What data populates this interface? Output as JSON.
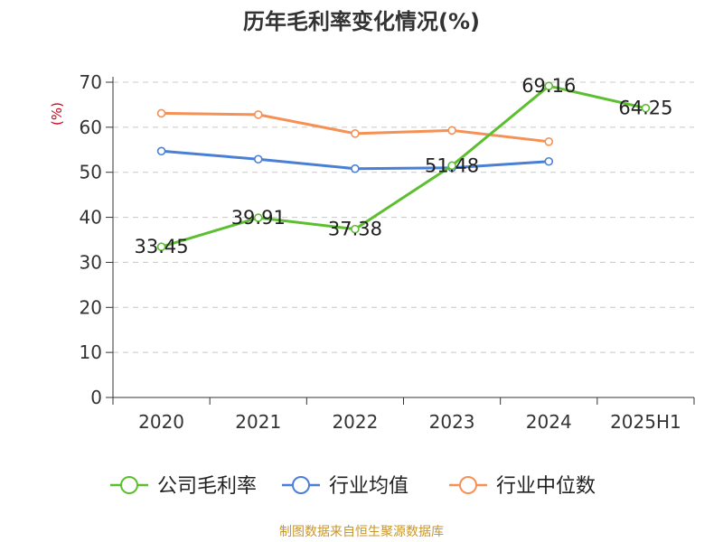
{
  "chart_data": {
    "type": "line",
    "title": "历年毛利率变化情况(%)",
    "ylabel": "(%)",
    "xlabel": "",
    "categories": [
      "2020",
      "2021",
      "2022",
      "2023",
      "2024",
      "2025H1"
    ],
    "ylim": [
      0,
      70
    ],
    "yticks": [
      0,
      10,
      20,
      30,
      40,
      50,
      60,
      70
    ],
    "grid": true,
    "legend_position": "bottom",
    "series": [
      {
        "name": "公司毛利率",
        "color": "#5cbf30",
        "values": [
          33.45,
          39.91,
          37.38,
          51.48,
          69.16,
          64.25
        ],
        "labels": [
          "33.45",
          "39.91",
          "37.38",
          "51.48",
          "69.16",
          "64.25"
        ]
      },
      {
        "name": "行业均值",
        "color": "#4a7fd6",
        "values": [
          54.7,
          52.9,
          50.8,
          51.0,
          52.4,
          null
        ]
      },
      {
        "name": "行业中位数",
        "color": "#f59155",
        "values": [
          63.1,
          62.8,
          58.6,
          59.3,
          56.8,
          null
        ]
      }
    ]
  },
  "source": "制图数据来自恒生聚源数据库"
}
